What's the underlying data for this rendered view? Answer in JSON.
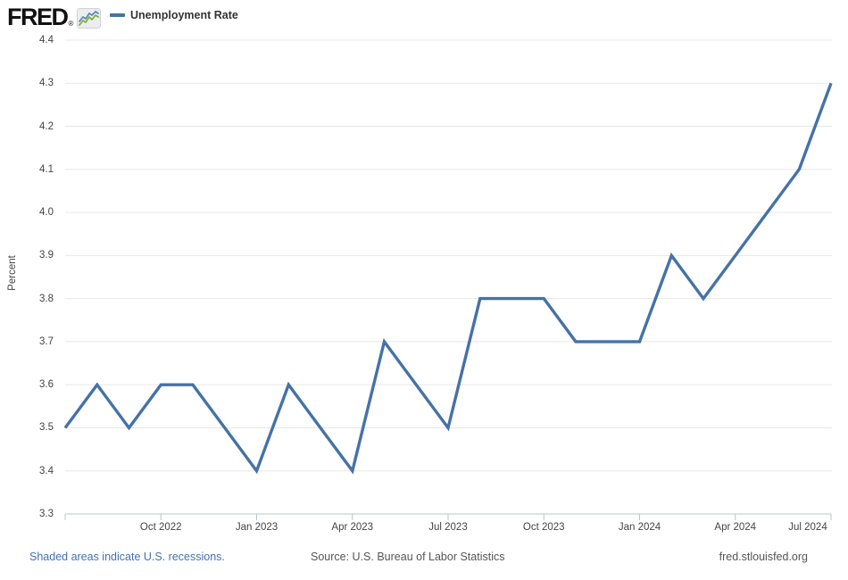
{
  "header": {
    "logo_text": "FRED",
    "logo_registered": "®",
    "legend": {
      "series_label": "Unemployment Rate",
      "marker_color": "#4572a7"
    }
  },
  "chart_data": {
    "type": "line",
    "title": "Unemployment Rate",
    "ylabel": "Percent",
    "ylim": [
      3.3,
      4.4
    ],
    "ytick_step": 0.1,
    "grid": true,
    "legend_position": "top-left",
    "line_color": "#4572a7",
    "x": [
      "Jul 2022",
      "Aug 2022",
      "Sep 2022",
      "Oct 2022",
      "Nov 2022",
      "Dec 2022",
      "Jan 2023",
      "Feb 2023",
      "Mar 2023",
      "Apr 2023",
      "May 2023",
      "Jun 2023",
      "Jul 2023",
      "Aug 2023",
      "Sep 2023",
      "Oct 2023",
      "Nov 2023",
      "Dec 2023",
      "Jan 2024",
      "Feb 2024",
      "Mar 2024",
      "Apr 2024",
      "May 2024",
      "Jun 2024",
      "Jul 2024"
    ],
    "values": [
      3.5,
      3.6,
      3.5,
      3.6,
      3.6,
      3.5,
      3.4,
      3.6,
      3.5,
      3.4,
      3.7,
      3.6,
      3.5,
      3.8,
      3.8,
      3.8,
      3.7,
      3.7,
      3.7,
      3.9,
      3.8,
      3.9,
      4.0,
      4.1,
      4.3
    ],
    "xtick_labels": [
      "Oct 2022",
      "Jan 2023",
      "Apr 2023",
      "Jul 2023",
      "Oct 2023",
      "Jan 2024",
      "Apr 2024",
      "Jul 2024"
    ]
  },
  "footer": {
    "recession_note": "Shaded areas indicate U.S. recessions.",
    "source": "Source: U.S. Bureau of Labor Statistics",
    "site": "fred.stlouisfed.org"
  },
  "colors": {
    "accent_blue": "#4572a7",
    "link_blue": "#4470b3",
    "gridline": "#e7e7e7",
    "axis_line": "#b9c5cf",
    "tick_text": "#444444",
    "footer_text": "#555555"
  }
}
